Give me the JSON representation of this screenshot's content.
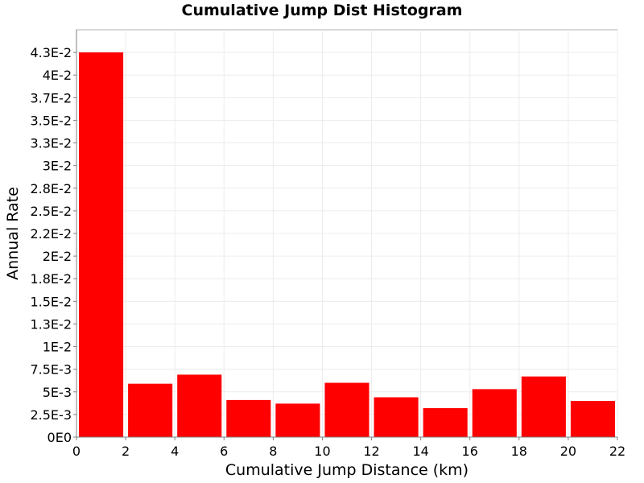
{
  "chart_data": {
    "type": "bar",
    "title": "Cumulative Jump Dist Histogram",
    "xlabel": "Cumulative Jump Distance (km)",
    "ylabel": "Annual Rate",
    "xlim": [
      0,
      22
    ],
    "ylim": [
      0,
      0.045
    ],
    "bin_width": 2,
    "x_ticks": [
      {
        "value": 0,
        "label": "0"
      },
      {
        "value": 2,
        "label": "2"
      },
      {
        "value": 4,
        "label": "4"
      },
      {
        "value": 6,
        "label": "6"
      },
      {
        "value": 8,
        "label": "8"
      },
      {
        "value": 10,
        "label": "10"
      },
      {
        "value": 12,
        "label": "12"
      },
      {
        "value": 14,
        "label": "14"
      },
      {
        "value": 16,
        "label": "16"
      },
      {
        "value": 18,
        "label": "18"
      },
      {
        "value": 20,
        "label": "20"
      },
      {
        "value": 22,
        "label": "22"
      }
    ],
    "y_ticks": [
      {
        "value": 0,
        "label": "0E0"
      },
      {
        "value": 0.0025,
        "label": "2.5E-3"
      },
      {
        "value": 0.005,
        "label": "5E-3"
      },
      {
        "value": 0.0075,
        "label": "7.5E-3"
      },
      {
        "value": 0.01,
        "label": "1E-2"
      },
      {
        "value": 0.0125,
        "label": "1.3E-2"
      },
      {
        "value": 0.015,
        "label": "1.5E-2"
      },
      {
        "value": 0.0175,
        "label": "1.8E-2"
      },
      {
        "value": 0.02,
        "label": "2E-2"
      },
      {
        "value": 0.0225,
        "label": "2.2E-2"
      },
      {
        "value": 0.025,
        "label": "2.5E-2"
      },
      {
        "value": 0.0275,
        "label": "2.8E-2"
      },
      {
        "value": 0.03,
        "label": "3E-2"
      },
      {
        "value": 0.0325,
        "label": "3.3E-2"
      },
      {
        "value": 0.035,
        "label": "3.5E-2"
      },
      {
        "value": 0.0375,
        "label": "3.7E-2"
      },
      {
        "value": 0.04,
        "label": "4E-2"
      },
      {
        "value": 0.0425,
        "label": "4.3E-2"
      }
    ],
    "bars": [
      {
        "x": 1,
        "value": 0.0425
      },
      {
        "x": 3,
        "value": 0.0059
      },
      {
        "x": 5,
        "value": 0.0069
      },
      {
        "x": 7,
        "value": 0.0041
      },
      {
        "x": 9,
        "value": 0.0037
      },
      {
        "x": 11,
        "value": 0.006
      },
      {
        "x": 13,
        "value": 0.0044
      },
      {
        "x": 15,
        "value": 0.0032
      },
      {
        "x": 17,
        "value": 0.0053
      },
      {
        "x": 19,
        "value": 0.0067
      },
      {
        "x": 21,
        "value": 0.004
      }
    ],
    "bar_color": "#ff0000",
    "grid": true,
    "legend": "none"
  }
}
